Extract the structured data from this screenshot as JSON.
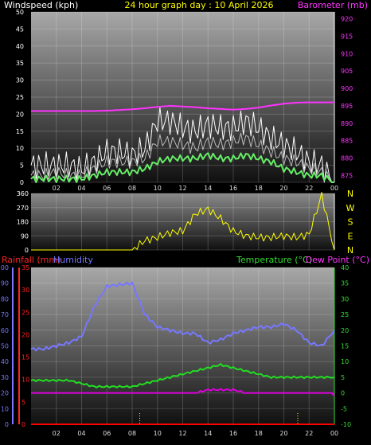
{
  "header": {
    "left_label": "Windspeed (kph)",
    "title": "24 hour graph day : 10 April 2026",
    "right_label": "Barometer (mb)"
  },
  "colors": {
    "wind_gust": "#ffffff",
    "wind_avg": "#bbbbbb",
    "wind_mean": "#66ee66",
    "barometer": "#ff33ff",
    "direction": "#ffff00",
    "rainfall": "#ff0000",
    "humidity": "#7777ff",
    "temperature": "#22dd22",
    "dew_point": "#dd00dd",
    "title": "#ffff00",
    "rain_label": "#ff2222",
    "humidity_label": "#7777ff",
    "temp_label": "#33dd33",
    "dew_label": "#ff33ff"
  },
  "x_ticks": [
    "02",
    "04",
    "06",
    "08",
    "10",
    "12",
    "14",
    "16",
    "18",
    "20",
    "22",
    "00"
  ],
  "chart_data": [
    {
      "type": "line",
      "name": "wind_and_pressure",
      "y_left": {
        "label": "Windspeed (kph)",
        "range": [
          0,
          50
        ],
        "ticks": [
          0,
          5,
          10,
          15,
          20,
          25,
          30,
          35,
          40,
          45,
          50
        ]
      },
      "y_right": {
        "label": "Barometer (mb)",
        "range": [
          873,
          922
        ],
        "ticks": [
          875,
          880,
          885,
          890,
          895,
          900,
          905,
          910,
          915,
          920
        ]
      },
      "x": [
        0,
        1,
        2,
        3,
        4,
        5,
        6,
        7,
        8,
        9,
        10,
        11,
        12,
        13,
        14,
        15,
        16,
        17,
        18,
        19,
        20,
        21,
        22,
        23,
        24
      ],
      "series": [
        {
          "name": "gust",
          "axis": "left",
          "values": [
            5,
            5,
            5,
            5,
            4,
            6,
            9,
            9,
            8,
            10,
            18,
            18,
            16,
            15,
            17,
            16,
            16,
            18,
            16,
            13,
            11,
            9,
            6,
            5,
            0
          ]
        },
        {
          "name": "average",
          "axis": "left",
          "values": [
            2,
            2,
            3,
            2,
            2,
            4,
            6,
            6,
            6,
            7,
            12,
            12,
            11,
            10,
            12,
            11,
            12,
            13,
            11,
            9,
            7,
            6,
            4,
            3,
            0
          ]
        },
        {
          "name": "mean",
          "axis": "left",
          "values": [
            1,
            1,
            1,
            1,
            1,
            2,
            3,
            3,
            3,
            4,
            6,
            7,
            7,
            7,
            8,
            7,
            7,
            8,
            7,
            6,
            4,
            3,
            2,
            2,
            0
          ]
        },
        {
          "name": "barometer",
          "axis": "right",
          "values": [
            893.5,
            893.5,
            893.5,
            893.5,
            893.5,
            893.5,
            893.6,
            893.8,
            894,
            894.3,
            894.7,
            895,
            894.8,
            894.6,
            894.3,
            894.1,
            893.9,
            894.1,
            894.5,
            895.1,
            895.6,
            895.9,
            896,
            896,
            896
          ]
        }
      ]
    },
    {
      "type": "line",
      "name": "wind_direction",
      "y_left": {
        "range": [
          0,
          360
        ],
        "ticks": [
          0,
          90,
          180,
          270,
          360
        ]
      },
      "direction_labels": [
        "N",
        "W",
        "S",
        "E",
        "N"
      ],
      "x": [
        0,
        1,
        2,
        3,
        4,
        5,
        6,
        7,
        8,
        9,
        10,
        11,
        12,
        13,
        14,
        15,
        16,
        17,
        18,
        19,
        20,
        21,
        22,
        23,
        24
      ],
      "values": [
        0,
        0,
        0,
        0,
        0,
        0,
        0,
        0,
        0,
        60,
        80,
        110,
        120,
        230,
        260,
        200,
        120,
        90,
        80,
        80,
        90,
        80,
        100,
        350,
        0
      ]
    },
    {
      "type": "line",
      "name": "rain_humidity_temperature",
      "y_humidity": {
        "label": "Humidity",
        "range": [
          0,
          100
        ],
        "ticks": [
          0,
          10,
          20,
          30,
          40,
          50,
          60,
          70,
          80,
          90,
          100
        ]
      },
      "y_rain": {
        "label": "Rainfall (mm)",
        "range": [
          0,
          35
        ],
        "ticks": [
          0,
          5,
          10,
          15,
          20,
          25,
          30,
          35
        ]
      },
      "y_temp": {
        "label": "Temperature (°C)",
        "range": [
          -10,
          40
        ],
        "ticks": [
          -10,
          -5,
          0,
          5,
          10,
          15,
          20,
          25,
          30,
          35,
          40
        ]
      },
      "dew_label": "Dew Point (°C)",
      "x": [
        0,
        1,
        2,
        3,
        4,
        5,
        6,
        7,
        8,
        9,
        10,
        11,
        12,
        13,
        14,
        15,
        16,
        17,
        18,
        19,
        20,
        21,
        22,
        23,
        24
      ],
      "series": [
        {
          "name": "humidity",
          "axis": "humidity",
          "values": [
            48,
            48,
            50,
            52,
            56,
            75,
            88,
            89,
            90,
            70,
            62,
            60,
            58,
            58,
            52,
            54,
            58,
            60,
            62,
            62,
            64,
            60,
            52,
            50,
            60
          ]
        },
        {
          "name": "temperature",
          "axis": "temp",
          "values": [
            4,
            4,
            4,
            4,
            3,
            2,
            2,
            2,
            2,
            3,
            4,
            5,
            6,
            7,
            8,
            9,
            8,
            7,
            6,
            5,
            5,
            5,
            5,
            5,
            5
          ]
        },
        {
          "name": "dew_point",
          "axis": "temp",
          "values": [
            -3,
            -3,
            -3,
            -3,
            -3,
            -1,
            0,
            0,
            0,
            -1,
            -2,
            -2,
            -1,
            0,
            1,
            1,
            1,
            0,
            0,
            -1,
            -1,
            -1,
            -2,
            -2,
            -1
          ]
        },
        {
          "name": "rainfall",
          "axis": "rain",
          "values": [
            0,
            0,
            0,
            0,
            0,
            0,
            0,
            0,
            0,
            0,
            0,
            0,
            0,
            0,
            0,
            0,
            0,
            0,
            0,
            0,
            0,
            0,
            0,
            0,
            0
          ]
        }
      ],
      "rain_markers_x": [
        8.6,
        21.1
      ]
    }
  ]
}
